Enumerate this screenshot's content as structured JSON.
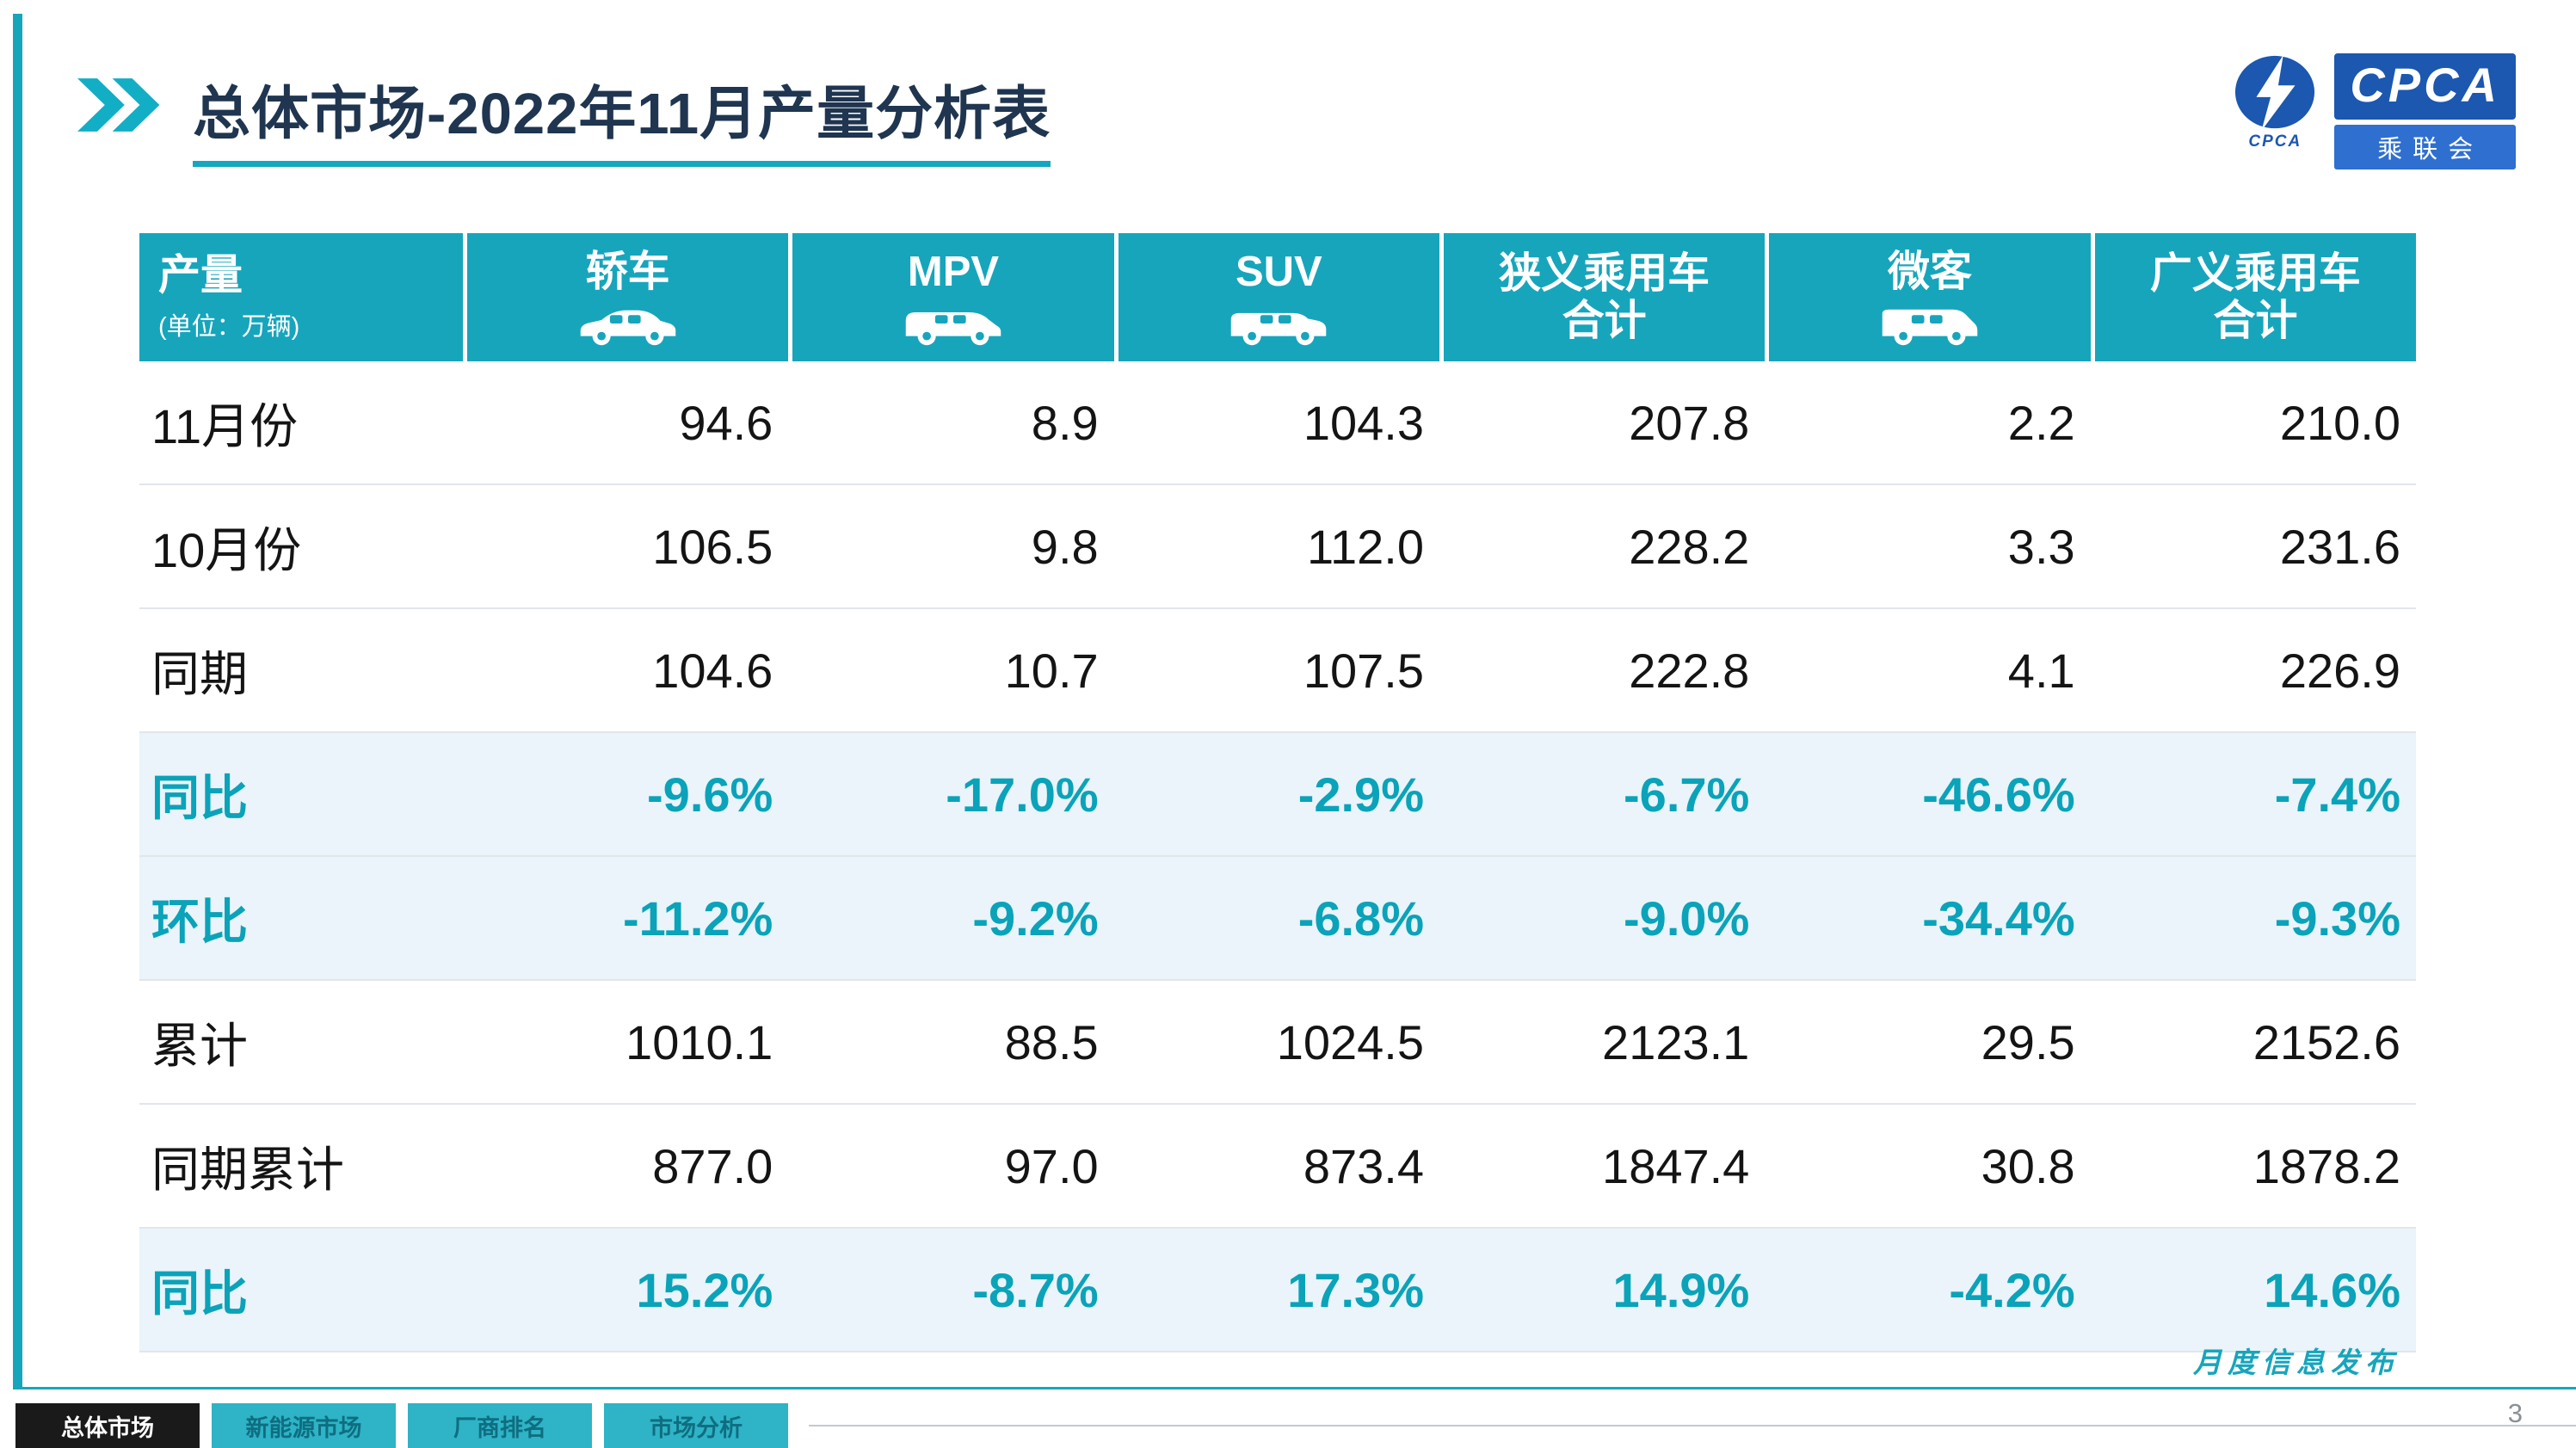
{
  "title": "总体市场-2022年11月产量分析表",
  "logo": {
    "name": "CPCA",
    "sub": "乘联会",
    "emblem_caption": "CPCA"
  },
  "watermark": {
    "line1": "CPCA",
    "line2": "乘联会"
  },
  "table": {
    "header": {
      "col0_title": "产量",
      "col0_sub": "(单位：万辆)",
      "columns": [
        {
          "label": "轿车",
          "icon": "sedan-icon"
        },
        {
          "label": "MPV",
          "icon": "mpv-icon"
        },
        {
          "label": "SUV",
          "icon": "suv-icon"
        },
        {
          "label": "狭义乘用车",
          "label2": "合计"
        },
        {
          "label": "微客",
          "icon": "van-icon"
        },
        {
          "label": "广义乘用车",
          "label2": "合计"
        }
      ]
    },
    "rows": [
      {
        "label": "11月份",
        "values": [
          "94.6",
          "8.9",
          "104.3",
          "207.8",
          "2.2",
          "210.0"
        ],
        "highlight": false
      },
      {
        "label": "10月份",
        "values": [
          "106.5",
          "9.8",
          "112.0",
          "228.2",
          "3.3",
          "231.6"
        ],
        "highlight": false
      },
      {
        "label": "同期",
        "values": [
          "104.6",
          "10.7",
          "107.5",
          "222.8",
          "4.1",
          "226.9"
        ],
        "highlight": false
      },
      {
        "label": "同比",
        "values": [
          "-9.6%",
          "-17.0%",
          "-2.9%",
          "-6.7%",
          "-46.6%",
          "-7.4%"
        ],
        "highlight": true
      },
      {
        "label": "环比",
        "values": [
          "-11.2%",
          "-9.2%",
          "-6.8%",
          "-9.0%",
          "-34.4%",
          "-9.3%"
        ],
        "highlight": true
      },
      {
        "label": "累计",
        "values": [
          "1010.1",
          "88.5",
          "1024.5",
          "2123.1",
          "29.5",
          "2152.6"
        ],
        "highlight": false
      },
      {
        "label": "同期累计",
        "values": [
          "877.0",
          "97.0",
          "873.4",
          "1847.4",
          "30.8",
          "1878.2"
        ],
        "highlight": false
      },
      {
        "label": "同比",
        "values": [
          "15.2%",
          "-8.7%",
          "17.3%",
          "14.9%",
          "-4.2%",
          "14.6%"
        ],
        "highlight": true
      }
    ]
  },
  "footer": {
    "tabs": [
      {
        "label": "总体市场",
        "active": true
      },
      {
        "label": "新能源市场",
        "active": false
      },
      {
        "label": "厂商排名",
        "active": false
      },
      {
        "label": "市场分析",
        "active": false
      }
    ],
    "release_note": "月度信息发布",
    "page_number": "3"
  },
  "colors": {
    "teal": "#17A5BC",
    "title_navy": "#1F3550",
    "highlight_row_bg": "#EAF4FA",
    "logo_blue": "#1C57B0",
    "active_tab_black": "#1A1A1A"
  }
}
